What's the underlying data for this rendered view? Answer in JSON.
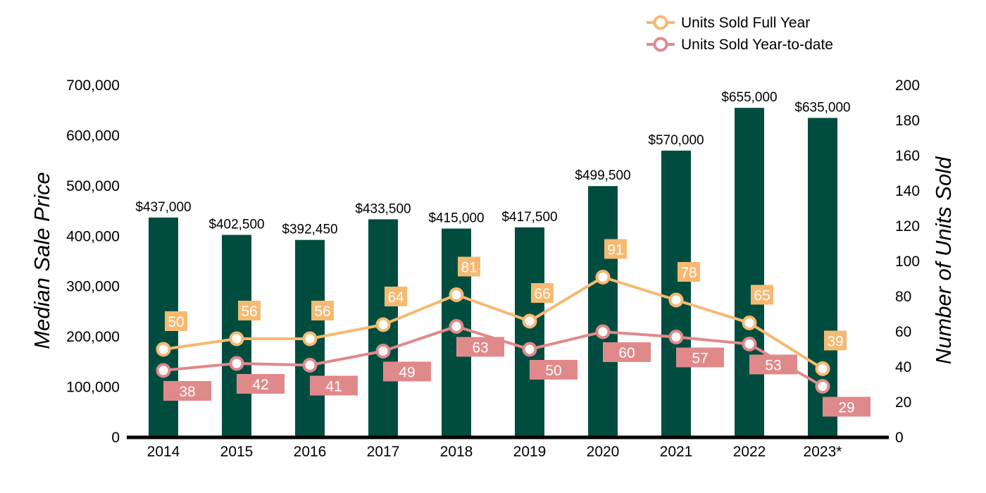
{
  "chart_data": {
    "type": "bar",
    "categories": [
      "2014",
      "2015",
      "2016",
      "2017",
      "2018",
      "2019",
      "2020",
      "2021",
      "2022",
      "2023*"
    ],
    "bar_series": {
      "values": [
        437000,
        402500,
        392450,
        433500,
        415000,
        417500,
        499500,
        570000,
        655000,
        635000
      ],
      "labels": [
        "$437,000",
        "$402,500",
        "$392,450",
        "$433,500",
        "$415,000",
        "$417,500",
        "$499,500",
        "$570,000",
        "$655,000",
        "$635,000"
      ],
      "color": "#004D40"
    },
    "line_series": [
      {
        "name": "Units Sold Full Year",
        "values": [
          50,
          56,
          56,
          64,
          81,
          66,
          91,
          78,
          65,
          39
        ],
        "color": "#F5B971",
        "label_position": "above"
      },
      {
        "name": "Units Sold Year-to-date",
        "values": [
          38,
          42,
          41,
          49,
          63,
          50,
          60,
          57,
          53,
          29
        ],
        "color": "#E0898B",
        "label_position": "below"
      }
    ],
    "ylabel": "Median Sale Price",
    "y2label": "Number of Units Sold",
    "ylim": [
      0,
      700000
    ],
    "y2lim": [
      0,
      200
    ],
    "yticks": [
      "0",
      "100,000",
      "200,000",
      "300,000",
      "400,000",
      "500,000",
      "600,000",
      "700,000"
    ],
    "y2ticks": [
      "0",
      "20",
      "40",
      "60",
      "80",
      "100",
      "120",
      "140",
      "160",
      "180",
      "200"
    ],
    "grid": false,
    "legend_position": "top-right"
  }
}
